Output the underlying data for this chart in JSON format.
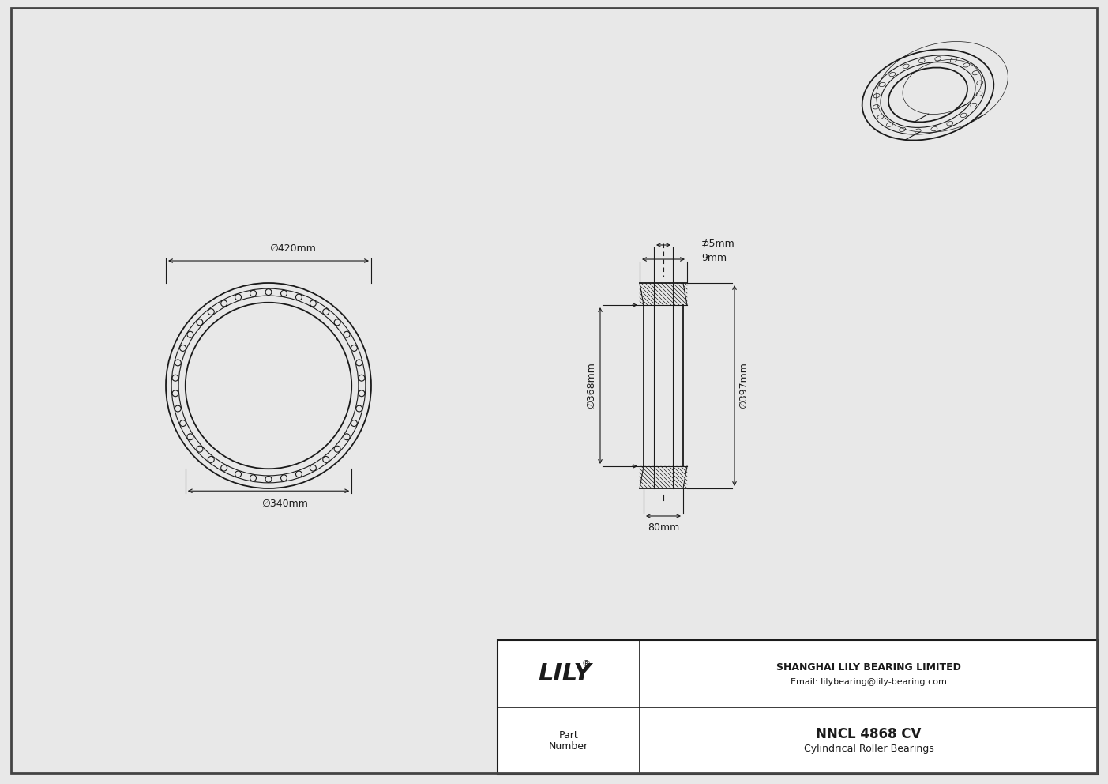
{
  "bg_color": "#e8e8e8",
  "line_color": "#1a1a1a",
  "white": "#ffffff",
  "title": "NNCL 4868 CV",
  "subtitle": "Cylindrical Roller Bearings",
  "company": "SHANGHAI LILY BEARING LIMITED",
  "email": "Email: lilybearing@lily-bearing.com",
  "part_label": "Part\nNumber",
  "dim_420": "∅420mm",
  "dim_340": "∅340mm",
  "dim_368": "∅368mm",
  "dim_397": "∅397mm",
  "dim_9mm": "9mm",
  "dim_5mm": "⊅5mm",
  "dim_80mm": "80mm",
  "n_rollers": 38
}
